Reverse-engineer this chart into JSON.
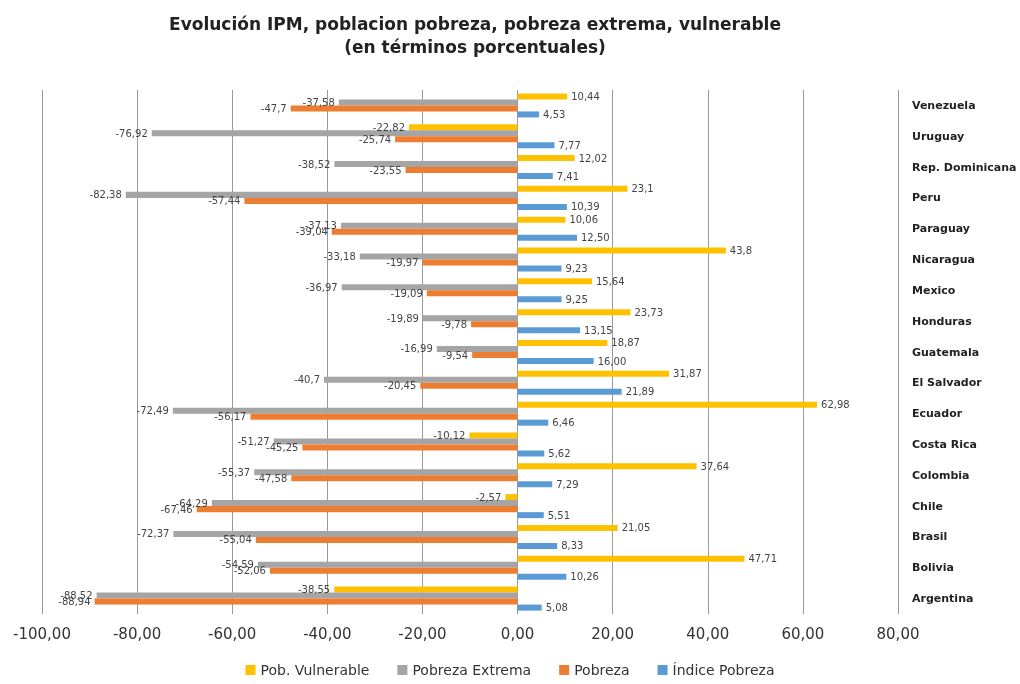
{
  "chart_data": {
    "type": "bar",
    "orientation": "horizontal",
    "title": "Evolución IPM, poblacion pobreza, pobreza extrema, vulnerable",
    "subtitle": "(en términos porcentuales)",
    "categories": [
      "Venezuela",
      "Uruguay",
      "Rep. Dominicana",
      "Peru",
      "Paraguay",
      "Nicaragua",
      "Mexico",
      "Honduras",
      "Guatemala",
      "El Salvador",
      "Ecuador",
      "Costa Rica",
      "Colombia",
      "Chile",
      "Brasil",
      "Bolivia",
      "Argentina"
    ],
    "series": [
      {
        "name": "Pob. Vulnerable",
        "color": "#ffc000",
        "values": [
          10.44,
          -22.82,
          12.02,
          23.1,
          10.06,
          43.8,
          15.64,
          23.73,
          18.87,
          31.87,
          62.98,
          -10.12,
          37.64,
          -2.57,
          21.05,
          47.71,
          -38.55
        ],
        "value_labels": [
          "10,44",
          "-22,82",
          "12,02",
          "23,1",
          "10,06",
          "43,8",
          "15,64",
          "23,73",
          "18,87",
          "31,87",
          "62,98",
          "-10,12",
          "37,64",
          "-2,57",
          "21,05",
          "47,71",
          "-38,55"
        ]
      },
      {
        "name": "Pobreza Extrema",
        "color": "#a5a5a5",
        "values": [
          -37.58,
          -76.92,
          -38.52,
          -82.38,
          -37.13,
          -33.18,
          -36.97,
          -19.89,
          -16.99,
          -40.7,
          -72.49,
          -51.27,
          -55.37,
          -64.29,
          -72.37,
          -54.59,
          -88.52
        ],
        "value_labels": [
          "-37,58",
          "-76,92",
          "-38,52",
          "-82,38",
          "-37,13",
          "-33,18",
          "-36,97",
          "-19,89",
          "-16,99",
          "-40,7",
          "-72,49",
          "-51,27",
          "-55,37",
          "-64,29",
          "-72,37",
          "-54,59",
          "-88,52"
        ]
      },
      {
        "name": "Pobreza",
        "color": "#ed7d31",
        "values": [
          -47.7,
          -25.74,
          -23.55,
          -57.44,
          -39.04,
          -19.97,
          -19.09,
          -9.78,
          -9.54,
          -20.45,
          -56.17,
          -45.25,
          -47.58,
          -67.46,
          -55.04,
          -52.06,
          -88.94
        ],
        "value_labels": [
          "-47,7",
          "-25,74",
          "-23,55",
          "-57,44",
          "-39,04",
          "-19,97",
          "-19,09",
          "-9,78",
          "-9,54",
          "-20,45",
          "-56,17",
          "-45,25",
          "-47,58",
          "-67,46",
          "-55,04",
          "-52,06",
          "-88,94"
        ]
      },
      {
        "name": "Índice Pobreza",
        "color": "#5b9bd5",
        "values": [
          4.53,
          7.77,
          7.41,
          10.39,
          12.5,
          9.23,
          9.25,
          13.15,
          16.0,
          21.89,
          6.46,
          5.62,
          7.29,
          5.51,
          8.33,
          10.26,
          5.08
        ],
        "value_labels": [
          "4,53",
          "7,77",
          "7,41",
          "10,39",
          "12,50",
          "9,23",
          "9,25",
          "13,15",
          "16,00",
          "21,89",
          "6,46",
          "5,62",
          "7,29",
          "5,51",
          "8,33",
          "10,26",
          "5,08"
        ]
      }
    ],
    "xlim": [
      -100,
      80
    ],
    "xticks": [
      {
        "value": -100,
        "label": "-100,00"
      },
      {
        "value": -80,
        "label": "-80,00"
      },
      {
        "value": -60,
        "label": "-60,00"
      },
      {
        "value": -40,
        "label": "-40,00"
      },
      {
        "value": -20,
        "label": "-20,00"
      },
      {
        "value": 0,
        "label": "0,00"
      },
      {
        "value": 20,
        "label": "20,00"
      },
      {
        "value": 40,
        "label": "40,00"
      },
      {
        "value": 60,
        "label": "60,00"
      },
      {
        "value": 80,
        "label": "80,00"
      }
    ],
    "grid": "x",
    "legend": "bottom"
  }
}
